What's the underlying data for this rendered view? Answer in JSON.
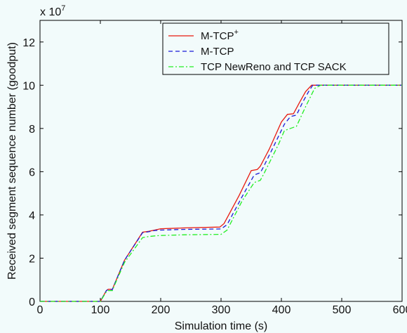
{
  "chart_data": {
    "type": "line",
    "title": "",
    "xlabel": "Simulation time (s)",
    "ylabel": "Received segment sequence number (goodput)",
    "exponent_label": "x 10",
    "exponent_power": "7",
    "xlim": [
      0,
      600
    ],
    "ylim": [
      0,
      13
    ],
    "xticks": [
      0,
      100,
      200,
      300,
      400,
      500,
      600
    ],
    "yticks": [
      0,
      2,
      4,
      6,
      8,
      10,
      12
    ],
    "grid": false,
    "legend_position": "top-right",
    "series": [
      {
        "name": "M-TCP",
        "name_superscript": "+",
        "color": "#e8190f",
        "style": "solid",
        "x": [
          0,
          100,
          110,
          113,
          120,
          122,
          140,
          170,
          180,
          190,
          200,
          240,
          298,
          305,
          330,
          350,
          360,
          365,
          380,
          400,
          410,
          420,
          430,
          440,
          450,
          500,
          600
        ],
        "y": [
          0,
          0,
          0.5,
          0.56,
          0.56,
          0.7,
          1.9,
          3.2,
          3.24,
          3.3,
          3.36,
          3.4,
          3.44,
          3.6,
          4.9,
          6.05,
          6.1,
          6.25,
          7.05,
          8.3,
          8.65,
          8.68,
          9.2,
          9.7,
          10.0,
          10.0,
          10.0
        ]
      },
      {
        "name": "M-TCP",
        "name_superscript": "",
        "color": "#1a1ad8",
        "style": "dashed",
        "x": [
          0,
          100,
          110,
          113,
          120,
          122,
          140,
          170,
          180,
          190,
          200,
          240,
          300,
          310,
          335,
          355,
          365,
          370,
          385,
          405,
          415,
          425,
          435,
          445,
          452,
          500,
          600
        ],
        "y": [
          0,
          0,
          0.5,
          0.55,
          0.55,
          0.7,
          1.9,
          3.18,
          3.22,
          3.28,
          3.3,
          3.33,
          3.35,
          3.55,
          4.85,
          5.85,
          5.95,
          6.2,
          7.05,
          8.2,
          8.55,
          8.62,
          9.2,
          9.7,
          10.0,
          10.0,
          10.0
        ]
      },
      {
        "name": "TCP NewReno and TCP SACK",
        "name_superscript": "",
        "color": "#22ee22",
        "style": "dashdot",
        "x": [
          0,
          100,
          110,
          113,
          120,
          122,
          140,
          170,
          180,
          190,
          200,
          240,
          300,
          310,
          335,
          355,
          365,
          370,
          395,
          405,
          415,
          425,
          440,
          455,
          465,
          500,
          600
        ],
        "y": [
          0,
          0,
          0.45,
          0.5,
          0.5,
          0.65,
          1.8,
          2.95,
          3.0,
          3.03,
          3.05,
          3.08,
          3.1,
          3.3,
          4.65,
          5.5,
          5.6,
          5.85,
          7.25,
          7.9,
          8.0,
          8.1,
          9.0,
          9.85,
          10.0,
          10.0,
          10.0
        ]
      }
    ]
  }
}
